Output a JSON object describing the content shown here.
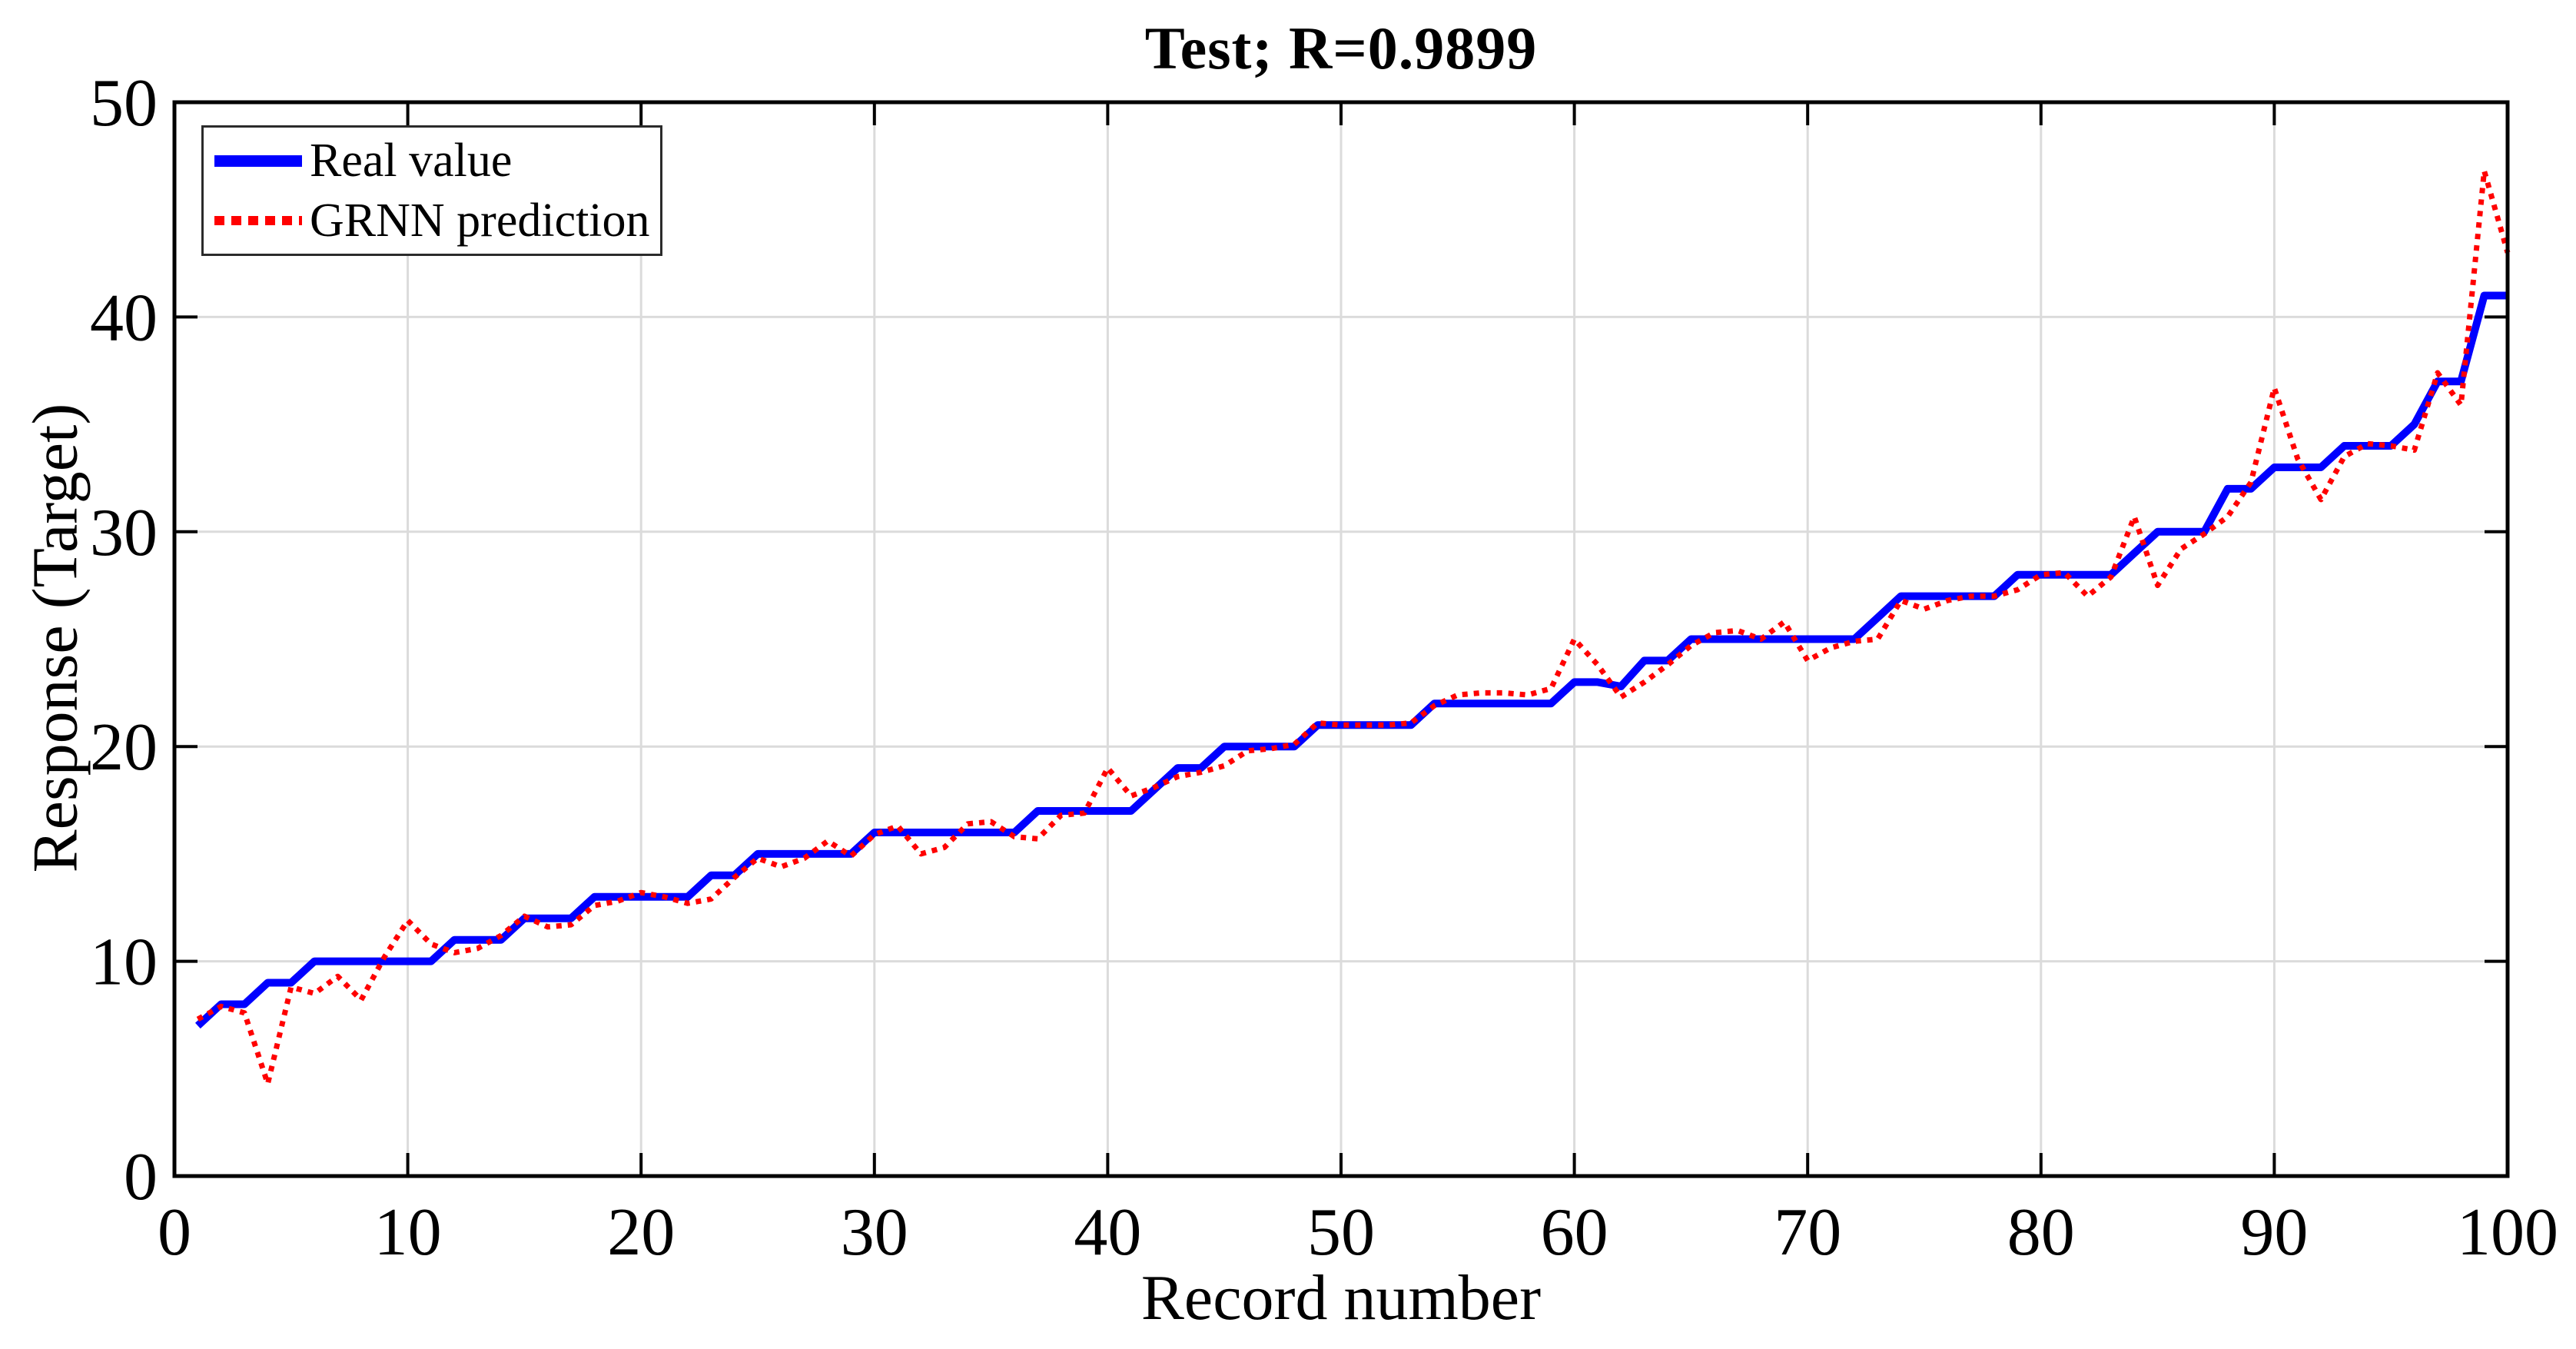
{
  "title": "Test; R=0.9899",
  "axes": {
    "x_label": "Record number",
    "y_label": "Response (Target)"
  },
  "legend": {
    "position": "top-left",
    "items": [
      {
        "label": "Real value",
        "color": "#0000ff",
        "style": "solid"
      },
      {
        "label": "GRNN prediction",
        "color": "#ff0000",
        "style": "dotted"
      }
    ]
  },
  "colors": {
    "real_value_line": "#0000ff",
    "grnn_prediction_line": "#ff0000",
    "grid": "#dbdbdb",
    "axis": "#000000",
    "text": "#000000",
    "background": "#ffffff"
  },
  "chart_data": {
    "type": "line",
    "title": "Test; R=0.9899",
    "xlabel": "Record number",
    "ylabel": "Response (Target)",
    "xlim": [
      0,
      100
    ],
    "ylim": [
      0,
      50
    ],
    "x_ticks": [
      0,
      10,
      20,
      30,
      40,
      50,
      60,
      70,
      80,
      90,
      100
    ],
    "y_ticks": [
      0,
      10,
      20,
      30,
      40,
      50
    ],
    "grid": true,
    "legend_position": "top-left",
    "x_range": [
      1,
      100
    ],
    "series": [
      {
        "name": "Real value",
        "color": "#0000ff",
        "style": "solid",
        "line_width": 10,
        "values": [
          7,
          8,
          8,
          9,
          9,
          10,
          10,
          10,
          10,
          10,
          10,
          11,
          11,
          11,
          12,
          12,
          12,
          13,
          13,
          13,
          13,
          13,
          14,
          14,
          15,
          15,
          15,
          15,
          15,
          16,
          16,
          16,
          16,
          16,
          16,
          16,
          17,
          17,
          17,
          17,
          17,
          18,
          19,
          19,
          20,
          20,
          20,
          20,
          21,
          21,
          21,
          21,
          21,
          22,
          22,
          22,
          22,
          22,
          22,
          23,
          23,
          22.8,
          24,
          24,
          25,
          25,
          25,
          25,
          25,
          25,
          25,
          25,
          26,
          27,
          27,
          27,
          27,
          27,
          28,
          28,
          28,
          28,
          28,
          29,
          30,
          30,
          30,
          32,
          32,
          33,
          33,
          33,
          34,
          34,
          34,
          35,
          37,
          37,
          41,
          41
        ]
      },
      {
        "name": "GRNN prediction",
        "color": "#ff0000",
        "style": "dotted",
        "line_width": 7,
        "values": [
          7.3,
          7.9,
          7.6,
          4.3,
          8.8,
          8.5,
          9.3,
          8.2,
          10.2,
          11.9,
          10.8,
          10.4,
          10.6,
          11.2,
          12.1,
          11.6,
          11.7,
          12.6,
          12.8,
          13.2,
          13.0,
          12.7,
          12.9,
          13.9,
          14.8,
          14.4,
          14.8,
          15.6,
          14.9,
          15.9,
          16.3,
          15.0,
          15.3,
          16.4,
          16.5,
          15.8,
          15.7,
          16.8,
          16.9,
          19.0,
          17.7,
          18.1,
          18.6,
          18.8,
          19.1,
          19.8,
          19.9,
          20.1,
          21.1,
          21.0,
          21.0,
          21.0,
          21.1,
          21.9,
          22.4,
          22.5,
          22.5,
          22.4,
          22.7,
          25.0,
          23.8,
          22.3,
          23.0,
          23.8,
          24.7,
          25.3,
          25.4,
          25.0,
          25.8,
          24.0,
          24.6,
          24.9,
          25.0,
          26.8,
          26.4,
          26.8,
          27.0,
          27.0,
          27.3,
          28.0,
          28.1,
          27.0,
          27.9,
          30.7,
          27.5,
          29.2,
          29.9,
          30.7,
          32.3,
          36.7,
          33.4,
          31.5,
          33.5,
          34.1,
          34.0,
          33.8,
          37.4,
          35.9,
          46.8,
          43.0
        ]
      }
    ]
  }
}
